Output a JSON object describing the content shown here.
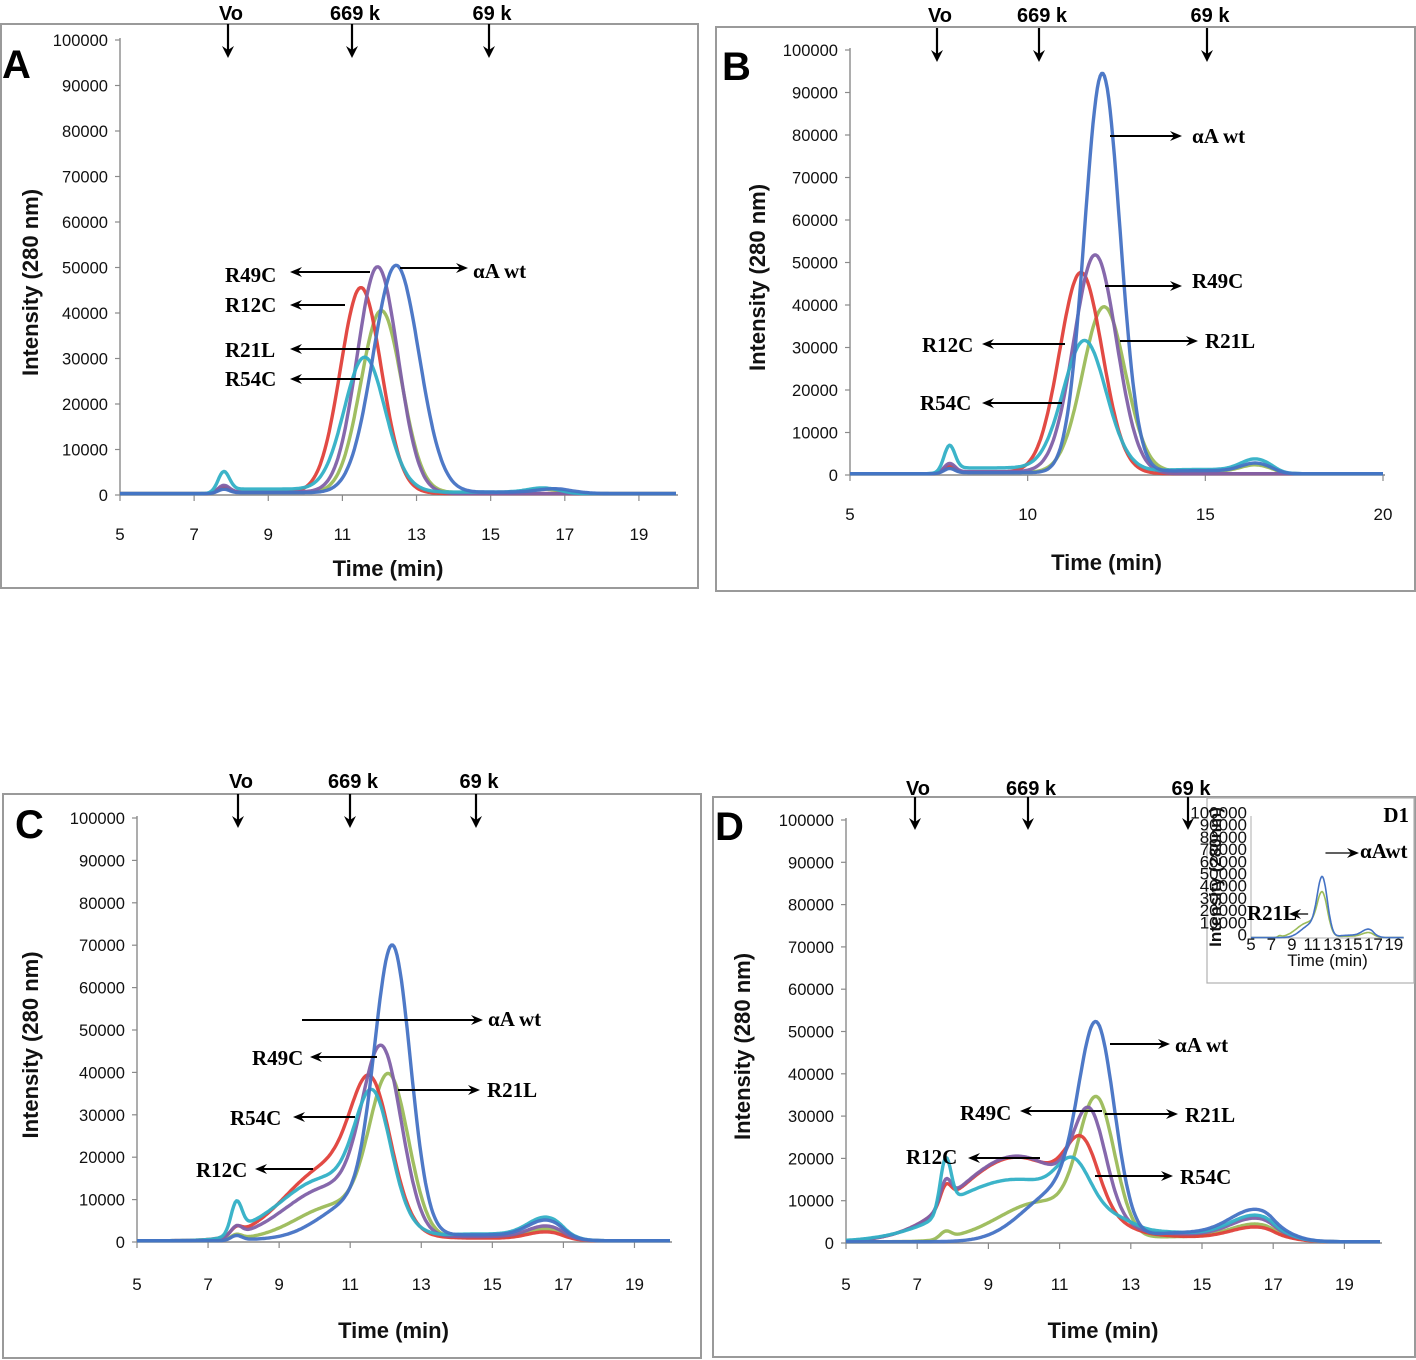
{
  "figure": {
    "panel_labels": [
      "A",
      "B",
      "C",
      "D"
    ],
    "inset_label": "D1"
  },
  "chart_data": [
    {
      "id": "A",
      "type": "line",
      "title": "",
      "xlabel": "Time (min)",
      "ylabel": "Intensity (280 nm)",
      "xlim": [
        5,
        20
      ],
      "ylim": [
        0,
        100000
      ],
      "xticks": [
        5,
        7,
        9,
        11,
        13,
        15,
        17,
        19
      ],
      "yticks": [
        0,
        10000,
        20000,
        30000,
        40000,
        50000,
        60000,
        70000,
        80000,
        90000,
        100000
      ],
      "grid": false,
      "markers": [
        {
          "label": "Vo",
          "x": 7.8
        },
        {
          "label": "669 k",
          "x": 11.3
        },
        {
          "label": "69 k",
          "x": 15.0
        }
      ],
      "series": [
        {
          "name": "αA wt",
          "color": "#4472c4",
          "peaks": [
            {
              "x": 12.45,
              "y": 50000,
              "w": 0.62
            }
          ],
          "void": 800,
          "tail": [
            {
              "x": 16.8,
              "y": 800,
              "w": 0.5
            }
          ]
        },
        {
          "name": "R49C",
          "color": "#7f60a8",
          "peaks": [
            {
              "x": 11.95,
              "y": 49500,
              "w": 0.55
            }
          ],
          "void": 1500,
          "tail": []
        },
        {
          "name": "R12C",
          "color": "#e0403a",
          "peaks": [
            {
              "x": 11.5,
              "y": 45000,
              "w": 0.55
            }
          ],
          "void": 1200,
          "tail": []
        },
        {
          "name": "R21L",
          "color": "#9bbb59",
          "peaks": [
            {
              "x": 12.05,
              "y": 40000,
              "w": 0.55
            }
          ],
          "void": 1000,
          "tail": [
            {
              "x": 16.4,
              "y": 700,
              "w": 0.4
            }
          ]
        },
        {
          "name": "R54C",
          "color": "#31b0c6",
          "peaks": [
            {
              "x": 11.6,
              "y": 29000,
              "w": 0.55
            }
          ],
          "void": 4000,
          "tail": [
            {
              "x": 16.4,
              "y": 900,
              "w": 0.4
            }
          ]
        }
      ],
      "annotations": [
        {
          "text": "R49C",
          "direction": "left"
        },
        {
          "text": "αA wt",
          "direction": "right"
        },
        {
          "text": "R12C",
          "direction": "left"
        },
        {
          "text": "R21L",
          "direction": "left"
        },
        {
          "text": "R54C",
          "direction": "left"
        }
      ]
    },
    {
      "id": "B",
      "type": "line",
      "title": "",
      "xlabel": "Time  (min)",
      "ylabel": "Intensity (280 nm)",
      "xlim": [
        5,
        20
      ],
      "ylim": [
        0,
        100000
      ],
      "xticks": [
        5,
        10,
        15,
        20
      ],
      "yticks": [
        0,
        10000,
        20000,
        30000,
        40000,
        50000,
        60000,
        70000,
        80000,
        90000,
        100000
      ],
      "grid": false,
      "markers": [
        {
          "label": "Vo",
          "x": 7.5
        },
        {
          "label": "669 k",
          "x": 10.4
        },
        {
          "label": "69 k",
          "x": 15.1
        }
      ],
      "series": [
        {
          "name": "αA wt",
          "color": "#4472c4",
          "peaks": [
            {
              "x": 12.1,
              "y": 94000,
              "w": 0.5
            }
          ],
          "void": 1000,
          "tail": [
            {
              "x": 16.4,
              "y": 1800,
              "w": 0.4
            }
          ]
        },
        {
          "name": "R49C",
          "color": "#7f60a8",
          "peaks": [
            {
              "x": 11.9,
              "y": 51000,
              "w": 0.6
            }
          ],
          "void": 2000,
          "tail": []
        },
        {
          "name": "R12C",
          "color": "#e0403a",
          "peaks": [
            {
              "x": 11.5,
              "y": 47000,
              "w": 0.6
            }
          ],
          "void": 1500,
          "tail": []
        },
        {
          "name": "R21L",
          "color": "#9bbb59",
          "peaks": [
            {
              "x": 12.15,
              "y": 39000,
              "w": 0.6
            }
          ],
          "void": 1200,
          "tail": [
            {
              "x": 16.4,
              "y": 1500,
              "w": 0.4
            }
          ]
        },
        {
          "name": "R54C",
          "color": "#31b0c6",
          "peaks": [
            {
              "x": 11.6,
              "y": 30000,
              "w": 0.6
            }
          ],
          "void": 5500,
          "tail": [
            {
              "x": 16.4,
              "y": 2500,
              "w": 0.4
            }
          ]
        }
      ],
      "annotations": [
        {
          "text": "αA wt",
          "direction": "right"
        },
        {
          "text": "R49C",
          "direction": "right"
        },
        {
          "text": "R12C",
          "direction": "left"
        },
        {
          "text": "R21L",
          "direction": "right"
        },
        {
          "text": "R54C",
          "direction": "left"
        }
      ]
    },
    {
      "id": "C",
      "type": "line",
      "title": "",
      "xlabel": "Time (min)",
      "ylabel": "Intensity (280 nm)",
      "xlim": [
        5,
        20
      ],
      "ylim": [
        0,
        100000
      ],
      "xticks": [
        5,
        7,
        9,
        11,
        13,
        15,
        17,
        19
      ],
      "yticks": [
        0,
        10000,
        20000,
        30000,
        40000,
        50000,
        60000,
        70000,
        80000,
        90000,
        100000
      ],
      "grid": false,
      "markers": [
        {
          "label": "Vo",
          "x": 7.8
        },
        {
          "label": "669 k",
          "x": 11.0
        },
        {
          "label": "69 k",
          "x": 14.6
        }
      ],
      "series": [
        {
          "name": "αA wt",
          "color": "#4472c4",
          "peaks": [
            {
              "x": 12.2,
              "y": 64000,
              "w": 0.5
            },
            {
              "x": 11.2,
              "y": 9000,
              "w": 1.0
            }
          ],
          "void": 1000,
          "tail": [
            {
              "x": 16.5,
              "y": 3500,
              "w": 0.5
            }
          ]
        },
        {
          "name": "R49C",
          "color": "#7f60a8",
          "peaks": [
            {
              "x": 11.9,
              "y": 40000,
              "w": 0.55
            },
            {
              "x": 10.4,
              "y": 12000,
              "w": 1.2
            }
          ],
          "void": 2000,
          "tail": [
            {
              "x": 16.5,
              "y": 2500,
              "w": 0.5
            }
          ]
        },
        {
          "name": "R12C",
          "color": "#e0403a",
          "peaks": [
            {
              "x": 11.6,
              "y": 28000,
              "w": 0.55
            },
            {
              "x": 10.4,
              "y": 17000,
              "w": 1.2
            }
          ],
          "void": 1500,
          "tail": [
            {
              "x": 16.5,
              "y": 1500,
              "w": 0.5
            }
          ]
        },
        {
          "name": "R21L",
          "color": "#9bbb59",
          "peaks": [
            {
              "x": 12.1,
              "y": 36000,
              "w": 0.55
            },
            {
              "x": 10.6,
              "y": 8000,
              "w": 1.1
            }
          ],
          "void": 1000,
          "tail": [
            {
              "x": 16.5,
              "y": 2000,
              "w": 0.5
            }
          ]
        },
        {
          "name": "R54C",
          "color": "#31b0c6",
          "peaks": [
            {
              "x": 11.65,
              "y": 27000,
              "w": 0.5
            },
            {
              "x": 10.3,
              "y": 13000,
              "w": 1.2
            }
          ],
          "void": 6500,
          "tail": [
            {
              "x": 16.5,
              "y": 4000,
              "w": 0.5
            }
          ]
        }
      ],
      "annotations": [
        {
          "text": "αA wt",
          "direction": "right"
        },
        {
          "text": "R49C",
          "direction": "left"
        },
        {
          "text": "R21L",
          "direction": "right"
        },
        {
          "text": "R54C",
          "direction": "left"
        },
        {
          "text": "R12C",
          "direction": "left"
        }
      ]
    },
    {
      "id": "D",
      "type": "line",
      "title": "",
      "xlabel": "Time (min)",
      "ylabel": "Intensity (280 nm)",
      "xlim": [
        5,
        20
      ],
      "ylim": [
        0,
        100000
      ],
      "xticks": [
        5,
        7,
        9,
        11,
        13,
        15,
        17,
        19
      ],
      "yticks": [
        0,
        10000,
        20000,
        30000,
        40000,
        50000,
        60000,
        70000,
        80000,
        90000,
        100000
      ],
      "grid": false,
      "markers": [
        {
          "label": "Vo",
          "x": 7.0
        },
        {
          "label": "669 k",
          "x": 10.2
        },
        {
          "label": "69 k",
          "x": 14.6
        }
      ],
      "series": [
        {
          "name": "αA wt",
          "color": "#4472c4",
          "peaks": [
            {
              "x": 12.05,
              "y": 45000,
              "w": 0.5
            },
            {
              "x": 11.0,
              "y": 12000,
              "w": 1.0
            }
          ],
          "void": 0,
          "tail": [
            {
              "x": 16.5,
              "y": 5500,
              "w": 0.7
            }
          ]
        },
        {
          "name": "R49C",
          "color": "#7f60a8",
          "peaks": [
            {
              "x": 11.85,
              "y": 22000,
              "w": 0.45
            },
            {
              "x": 9.8,
              "y": 19000,
              "w": 1.6
            }
          ],
          "void": 5000,
          "tail": [
            {
              "x": 16.5,
              "y": 4000,
              "w": 0.7
            }
          ]
        },
        {
          "name": "R12C",
          "color": "#e0403a",
          "peaks": [
            {
              "x": 11.65,
              "y": 14000,
              "w": 0.45
            },
            {
              "x": 9.8,
              "y": 19000,
              "w": 1.6
            }
          ],
          "void": 4000,
          "tail": [
            {
              "x": 16.5,
              "y": 2500,
              "w": 0.7
            }
          ]
        },
        {
          "name": "R21L",
          "color": "#9bbb59",
          "peaks": [
            {
              "x": 12.05,
              "y": 30000,
              "w": 0.5
            },
            {
              "x": 10.5,
              "y": 9000,
              "w": 1.2
            }
          ],
          "void": 1500,
          "tail": [
            {
              "x": 16.5,
              "y": 3000,
              "w": 0.7
            }
          ]
        },
        {
          "name": "R54C",
          "color": "#31b0c6",
          "peaks": [
            {
              "x": 11.4,
              "y": 9000,
              "w": 0.45
            },
            {
              "x": 9.8,
              "y": 12000,
              "w": 1.8
            }
          ],
          "void": 11000,
          "tail": [
            {
              "x": 16.5,
              "y": 4500,
              "w": 0.7
            }
          ]
        }
      ],
      "annotations": [
        {
          "text": "αA wt",
          "direction": "right"
        },
        {
          "text": "R49C",
          "direction": "left"
        },
        {
          "text": "R21L",
          "direction": "right"
        },
        {
          "text": "R12C",
          "direction": "left"
        },
        {
          "text": "R54C",
          "direction": "right"
        }
      ]
    },
    {
      "id": "D1",
      "type": "line",
      "title": "D1",
      "xlabel": "Time (min)",
      "ylabel": "Intensity (280nm)",
      "xlim": [
        5,
        20
      ],
      "ylim": [
        0,
        100000
      ],
      "xticks": [
        5,
        7,
        9,
        11,
        13,
        15,
        17,
        19
      ],
      "yticks": [
        0,
        10000,
        20000,
        30000,
        40000,
        50000,
        60000,
        70000,
        80000,
        90000,
        100000
      ],
      "grid": false,
      "series": [
        {
          "name": "αA wt",
          "color": "#4472c4",
          "peaks": [
            {
              "x": 12.0,
              "y": 46000,
              "w": 0.5
            },
            {
              "x": 10.8,
              "y": 10000,
              "w": 0.9
            }
          ],
          "void": 0,
          "tail": [
            {
              "x": 16.5,
              "y": 5000,
              "w": 0.6
            }
          ]
        },
        {
          "name": "R21L",
          "color": "#9bbb59",
          "peaks": [
            {
              "x": 12.0,
              "y": 32000,
              "w": 0.5
            },
            {
              "x": 10.6,
              "y": 12000,
              "w": 1.1
            }
          ],
          "void": 1000,
          "tail": [
            {
              "x": 16.5,
              "y": 3000,
              "w": 0.6
            }
          ]
        }
      ],
      "annotations": [
        {
          "text": "αAwt",
          "direction": "right"
        },
        {
          "text": "R21L",
          "direction": "left"
        }
      ]
    }
  ]
}
